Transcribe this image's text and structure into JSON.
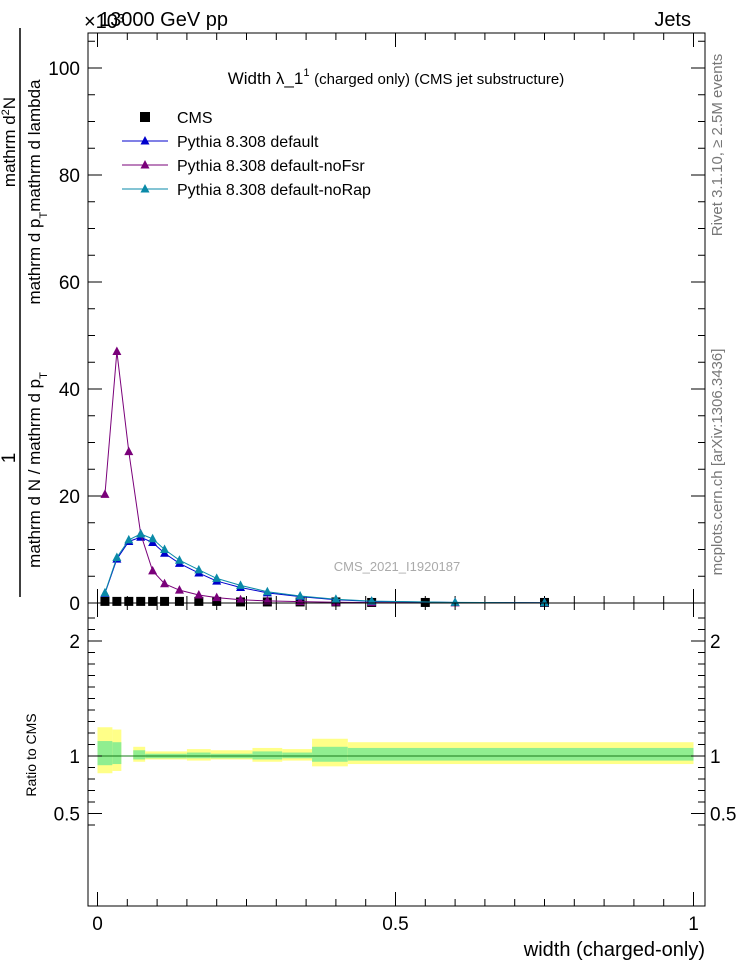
{
  "header": {
    "left": "13000 GeV pp",
    "right": "Jets",
    "exponent": "×10³"
  },
  "side": {
    "rivet": "Rivet 3.1.10, ≥ 2.5M events",
    "mcplots": "mcplots.cern.ch [arXiv:1306.3436]"
  },
  "colors": {
    "cms": "#000000",
    "default": "#0000cc",
    "noFsr": "#7a007a",
    "noRap": "#0a8aa8",
    "band_outer": "#ffff88",
    "band_inner": "#90ee90"
  },
  "chart_data": [
    {
      "type": "line",
      "title_main": "Width λ_1",
      "title_sup": "1",
      "title_rest": "(charged only) (CMS jet substructure)",
      "ylabel": "1 / (mathrm d N / mathrm d p_T) · mathrm d²N / (mathrm d p_T mathrm d lambda)",
      "ylabel_parts": {
        "numerator": "1",
        "den_top": "mathrm d",
        "den_top_sup": "2",
        "den_top_end": "N",
        "den_mid1": "mathrm d p",
        "den_mid1_sub": "T",
        "den_mid2": "mathrm d lambda",
        "den_bot": "mathrm d N / mathrm d p",
        "den_bot_sub": "T"
      },
      "watermark": "CMS_2021_I1920187",
      "xlim": [
        0,
        1
      ],
      "ylim": [
        0,
        105
      ],
      "yticks": [
        0,
        20,
        40,
        60,
        80,
        100
      ],
      "legend": [
        {
          "name": "CMS",
          "marker": "square",
          "color": "#000000"
        },
        {
          "name": "Pythia 8.308 default",
          "marker": "triangle",
          "color": "#0000cc"
        },
        {
          "name": "Pythia 8.308 default-noFsr",
          "marker": "triangle",
          "color": "#7a007a"
        },
        {
          "name": "Pythia 8.308 default-noRap",
          "marker": "triangle",
          "color": "#0a8aa8"
        }
      ],
      "series": [
        {
          "name": "CMS",
          "x": [
            0.0125,
            0.0325,
            0.0525,
            0.0725,
            0.0925,
            0.1125,
            0.1375,
            0.17,
            0.2,
            0.24,
            0.285,
            0.34,
            0.4,
            0.46,
            0.55,
            0.75
          ],
          "values": [
            0.3,
            0.3,
            0.3,
            0.3,
            0.3,
            0.3,
            0.3,
            0.3,
            0.3,
            0.2,
            0.2,
            0.2,
            0.2,
            0.1,
            0.1,
            0.1
          ]
        },
        {
          "name": "Pythia 8.308 default",
          "x": [
            0.0125,
            0.0325,
            0.0525,
            0.0725,
            0.0925,
            0.1125,
            0.1375,
            0.17,
            0.2,
            0.24,
            0.285,
            0.34,
            0.4,
            0.46,
            0.6,
            0.75
          ],
          "values": [
            1.8,
            8.2,
            11.5,
            12.3,
            11.3,
            9.3,
            7.4,
            5.6,
            4.1,
            2.9,
            1.9,
            1.2,
            0.6,
            0.3,
            0.1,
            0.05
          ]
        },
        {
          "name": "Pythia 8.308 default-noFsr",
          "x": [
            0.0125,
            0.0325,
            0.0525,
            0.0725,
            0.0925,
            0.1125,
            0.1375,
            0.17,
            0.2,
            0.24,
            0.285,
            0.34,
            0.4,
            0.46,
            0.6,
            0.75
          ],
          "values": [
            20.3,
            47.0,
            28.3,
            12.9,
            6.0,
            3.6,
            2.4,
            1.5,
            1.0,
            0.6,
            0.4,
            0.25,
            0.15,
            0.08,
            0.03,
            0.01
          ]
        },
        {
          "name": "Pythia 8.308 default-noRap",
          "x": [
            0.0125,
            0.0325,
            0.0525,
            0.0725,
            0.0925,
            0.1125,
            0.1375,
            0.17,
            0.2,
            0.24,
            0.285,
            0.34,
            0.4,
            0.46,
            0.6,
            0.75
          ],
          "values": [
            1.9,
            8.5,
            11.8,
            12.9,
            12.0,
            10.0,
            8.0,
            6.2,
            4.6,
            3.3,
            2.1,
            1.3,
            0.7,
            0.35,
            0.12,
            0.05
          ]
        }
      ]
    },
    {
      "type": "area",
      "ylabel": "Ratio to CMS",
      "xlabel": "width (charged-only)",
      "xlim": [
        0,
        1
      ],
      "ylim": [
        0.35,
        2.3
      ],
      "yticks": [
        0.5,
        1,
        2
      ],
      "xticks": [
        0,
        0.5,
        1
      ],
      "reference": 1,
      "bands": [
        {
          "x0": 0.0,
          "x1": 0.025,
          "outer": [
            0.85,
            1.25
          ],
          "inner": [
            0.92,
            1.13
          ]
        },
        {
          "x0": 0.025,
          "x1": 0.04,
          "outer": [
            0.87,
            1.23
          ],
          "inner": [
            0.93,
            1.12
          ]
        },
        {
          "x0": 0.06,
          "x1": 0.08,
          "outer": [
            0.95,
            1.08
          ],
          "inner": [
            0.97,
            1.05
          ]
        },
        {
          "x0": 0.08,
          "x1": 0.15,
          "outer": [
            0.97,
            1.04
          ],
          "inner": [
            0.98,
            1.02
          ]
        },
        {
          "x0": 0.15,
          "x1": 0.19,
          "outer": [
            0.96,
            1.06
          ],
          "inner": [
            0.98,
            1.03
          ]
        },
        {
          "x0": 0.19,
          "x1": 0.26,
          "outer": [
            0.97,
            1.05
          ],
          "inner": [
            0.98,
            1.02
          ]
        },
        {
          "x0": 0.26,
          "x1": 0.31,
          "outer": [
            0.95,
            1.07
          ],
          "inner": [
            0.97,
            1.04
          ]
        },
        {
          "x0": 0.31,
          "x1": 0.36,
          "outer": [
            0.96,
            1.06
          ],
          "inner": [
            0.98,
            1.03
          ]
        },
        {
          "x0": 0.36,
          "x1": 0.42,
          "outer": [
            0.91,
            1.15
          ],
          "inner": [
            0.95,
            1.08
          ]
        },
        {
          "x0": 0.42,
          "x1": 1.0,
          "outer": [
            0.93,
            1.12
          ],
          "inner": [
            0.96,
            1.07
          ]
        }
      ]
    }
  ]
}
